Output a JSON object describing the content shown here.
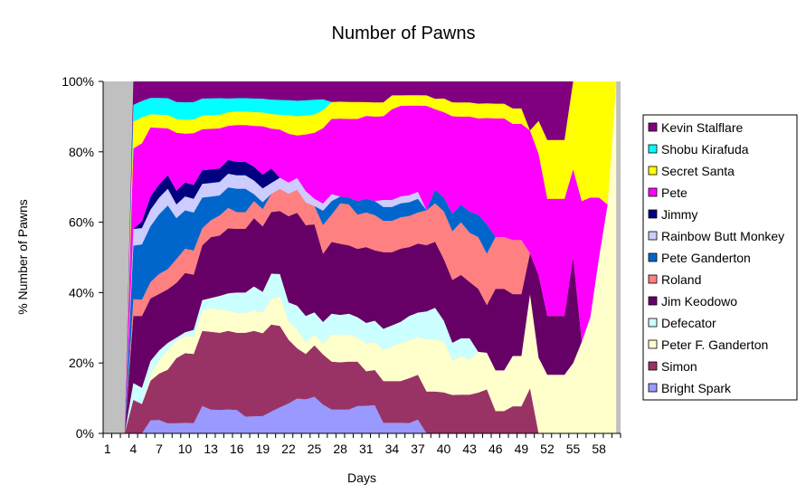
{
  "chart_data": {
    "type": "area",
    "stacked_percent": true,
    "title": "Number of Pawns",
    "xlabel": "Days",
    "ylabel": "% Number of Pawns",
    "ylim": [
      0,
      100
    ],
    "x": [
      1,
      2,
      3,
      4,
      5,
      6,
      7,
      8,
      9,
      10,
      11,
      12,
      13,
      14,
      15,
      16,
      17,
      18,
      19,
      20,
      21,
      22,
      23,
      24,
      25,
      26,
      27,
      28,
      29,
      30,
      31,
      32,
      33,
      34,
      35,
      36,
      37,
      38,
      39,
      40,
      41,
      42,
      43,
      44,
      45,
      46,
      47,
      48,
      49,
      50,
      51,
      52,
      53,
      54,
      55,
      56,
      57,
      58,
      59,
      60
    ],
    "x_ticks": [
      "1",
      "4",
      "7",
      "10",
      "13",
      "16",
      "19",
      "22",
      "25",
      "28",
      "31",
      "34",
      "37",
      "40",
      "43",
      "46",
      "49",
      "52",
      "55",
      "58"
    ],
    "y_ticks": [
      "0%",
      "20%",
      "40%",
      "60%",
      "80%",
      "100%"
    ],
    "legend_position": "right",
    "grid": false,
    "series": [
      {
        "name": "Bright Spark",
        "color": "#9999ff",
        "values": [
          0,
          0,
          0,
          0,
          0,
          4,
          4,
          3,
          3,
          3,
          3,
          8,
          7,
          7,
          7,
          7,
          5,
          5,
          5,
          6,
          7,
          8,
          9,
          9,
          10,
          8,
          7,
          7,
          7,
          8,
          8,
          8,
          3,
          3,
          3,
          3,
          4,
          0,
          0,
          0,
          0,
          0,
          0,
          0,
          0,
          0,
          0,
          0,
          0,
          0,
          0,
          0,
          0,
          0,
          0,
          0,
          0,
          0,
          0,
          0
        ]
      },
      {
        "name": "Simon",
        "color": "#993366",
        "values": [
          0,
          0,
          0,
          10,
          9,
          12,
          14,
          16,
          19,
          20,
          20,
          22,
          23,
          23,
          23,
          23,
          25,
          25,
          24,
          24,
          22,
          17,
          13,
          12,
          14,
          14,
          14,
          14,
          14,
          13,
          10,
          10,
          12,
          12,
          12,
          13,
          13,
          12,
          12,
          12,
          11,
          11,
          11,
          11,
          12,
          6,
          6,
          7,
          7,
          11,
          0,
          0,
          0,
          0,
          0,
          0,
          0,
          0,
          0,
          0
        ]
      },
      {
        "name": "Peter F. Ganderton",
        "color": "#ffffcc",
        "values": [
          0,
          0,
          0,
          0,
          0,
          2,
          4,
          6,
          5,
          5,
          5,
          6,
          7,
          7,
          6,
          6,
          6,
          6,
          6,
          7,
          8,
          5,
          5,
          3,
          3,
          3,
          8,
          8,
          8,
          7,
          8,
          8,
          9,
          10,
          11,
          11,
          11,
          15,
          15,
          15,
          10,
          11,
          10,
          11,
          10,
          11,
          11,
          13,
          13,
          23,
          23,
          20,
          20,
          20,
          20,
          26,
          33,
          50,
          65,
          100
        ]
      },
      {
        "name": "Defecator",
        "color": "#ccffff",
        "values": [
          0,
          0,
          0,
          5,
          5,
          4,
          3,
          2,
          1,
          1,
          2,
          3,
          3,
          4,
          5,
          6,
          6,
          7,
          6,
          7,
          6,
          5,
          6,
          7,
          6,
          6,
          6,
          6,
          6,
          6,
          6,
          6,
          6,
          6,
          6,
          7,
          7,
          8,
          9,
          6,
          5,
          5,
          6,
          0,
          0,
          0,
          0,
          0,
          0,
          0,
          0,
          0,
          0,
          0,
          0,
          0,
          0,
          0,
          0,
          0
        ]
      },
      {
        "name": "Jim Keodowo",
        "color": "#660066",
        "values": [
          0,
          0,
          0,
          20,
          22,
          19,
          17,
          16,
          16,
          17,
          16,
          16,
          18,
          18,
          19,
          19,
          19,
          20,
          19,
          17,
          17,
          23,
          24,
          24,
          24,
          19,
          21,
          21,
          20,
          20,
          22,
          20,
          22,
          21,
          21,
          20,
          20,
          19,
          19,
          18,
          18,
          18,
          16,
          17,
          13,
          22,
          22,
          16,
          16,
          10,
          25,
          20,
          20,
          20,
          30,
          0,
          0,
          0,
          0,
          0
        ]
      },
      {
        "name": "Roland",
        "color": "#ff8080",
        "values": [
          0,
          0,
          0,
          5,
          5,
          5,
          6,
          6,
          7,
          7,
          7,
          5,
          5,
          6,
          6,
          5,
          5,
          5,
          5,
          5,
          6,
          6,
          6,
          6,
          5,
          8,
          8,
          12,
          12,
          10,
          10,
          10,
          9,
          9,
          9,
          9,
          9,
          10,
          11,
          14,
          14,
          15,
          14,
          14,
          14,
          14,
          14,
          14,
          14,
          0,
          0,
          0,
          0,
          0,
          0,
          0,
          0,
          0,
          0,
          0
        ]
      },
      {
        "name": "Pete Ganderton",
        "color": "#0066cc",
        "values": [
          0,
          0,
          0,
          16,
          17,
          17,
          18,
          19,
          12,
          11,
          11,
          9,
          7,
          6,
          6,
          7,
          7,
          2,
          2,
          0,
          0,
          0,
          0,
          0,
          0,
          4,
          4,
          2,
          2,
          4,
          4,
          4,
          4,
          4,
          4,
          4,
          4,
          0,
          4,
          4,
          5,
          5,
          6,
          6,
          8,
          0,
          0,
          0,
          0,
          0,
          0,
          0,
          0,
          0,
          0,
          0,
          0,
          0,
          0,
          0
        ]
      },
      {
        "name": "Rainbow Butt Monkey",
        "color": "#ccccff",
        "values": [
          0,
          0,
          0,
          5,
          5,
          5,
          5,
          5,
          4,
          4,
          4,
          4,
          4,
          4,
          4,
          4,
          4,
          4,
          4,
          3,
          3,
          3,
          3,
          3,
          2,
          2,
          2,
          0,
          0,
          0,
          0,
          0,
          2,
          2,
          2,
          2,
          2,
          0,
          0,
          0,
          0,
          0,
          0,
          0,
          0,
          0,
          0,
          0,
          0,
          0,
          0,
          0,
          0,
          0,
          0,
          0,
          0,
          0,
          0,
          0
        ]
      },
      {
        "name": "Jimmy",
        "color": "#000080",
        "values": [
          0,
          0,
          0,
          0,
          2,
          4,
          4,
          4,
          4,
          4,
          4,
          4,
          4,
          4,
          4,
          4,
          4,
          4,
          4,
          4,
          0,
          0,
          0,
          0,
          0,
          0,
          0,
          0,
          0,
          0,
          0,
          0,
          0,
          0,
          0,
          0,
          0,
          0,
          0,
          0,
          0,
          0,
          0,
          0,
          0,
          0,
          0,
          0,
          0,
          0,
          0,
          0,
          0,
          0,
          0,
          0,
          0,
          0,
          0,
          0
        ]
      },
      {
        "name": "Pete",
        "color": "#ff00ff",
        "values": [
          0,
          0,
          0,
          24,
          24,
          21,
          17,
          14,
          17,
          14,
          15,
          12,
          12,
          12,
          10,
          11,
          11,
          12,
          14,
          11,
          13,
          13,
          11,
          15,
          18,
          21,
          22,
          23,
          23,
          24,
          24,
          24,
          24,
          26,
          26,
          26,
          25,
          30,
          23,
          25,
          28,
          25,
          27,
          26,
          29,
          32,
          32,
          30,
          30,
          30,
          37,
          40,
          40,
          40,
          25,
          40,
          34,
          17,
          0,
          0
        ]
      },
      {
        "name": "Secret Santa",
        "color": "#ffff00",
        "values": [
          0,
          0,
          0,
          8,
          8,
          4,
          4,
          4,
          4,
          4,
          4,
          4,
          4,
          4,
          4,
          4,
          4,
          4,
          4,
          4,
          4,
          5,
          5,
          5,
          5,
          5,
          5,
          5,
          5,
          5,
          4,
          4,
          4,
          4,
          3,
          3,
          3,
          3,
          3,
          4,
          4,
          4,
          4,
          4,
          4,
          4,
          4,
          4,
          4,
          0,
          10,
          20,
          20,
          20,
          25,
          34,
          33,
          33,
          35,
          0
        ]
      },
      {
        "name": "Shobu Kirafuda",
        "color": "#00ffff",
        "values": [
          0,
          0,
          0,
          5,
          5,
          5,
          5,
          5,
          5,
          5,
          5,
          5,
          5,
          5,
          4,
          4,
          4,
          4,
          4,
          4,
          4,
          4,
          4,
          4,
          4,
          3,
          0,
          0,
          0,
          0,
          0,
          0,
          0,
          0,
          0,
          0,
          0,
          0,
          0,
          0,
          0,
          0,
          0,
          0,
          0,
          0,
          0,
          0,
          0,
          0,
          0,
          0,
          0,
          0,
          0,
          0,
          0,
          0,
          0,
          0
        ]
      },
      {
        "name": "Kevin Stalflare",
        "color": "#800080",
        "values": [
          0,
          0,
          0,
          7,
          6,
          5,
          5,
          5,
          6,
          6,
          6,
          5,
          5,
          5,
          5,
          5,
          5,
          5,
          5,
          5,
          5,
          5,
          5,
          5,
          5,
          5,
          6,
          6,
          6,
          6,
          6,
          6,
          6,
          4,
          4,
          4,
          4,
          4,
          5,
          5,
          6,
          6,
          6,
          6,
          6,
          6,
          6,
          7,
          7,
          12,
          12,
          20,
          20,
          20,
          0,
          0,
          0,
          0,
          0,
          0
        ]
      }
    ]
  }
}
